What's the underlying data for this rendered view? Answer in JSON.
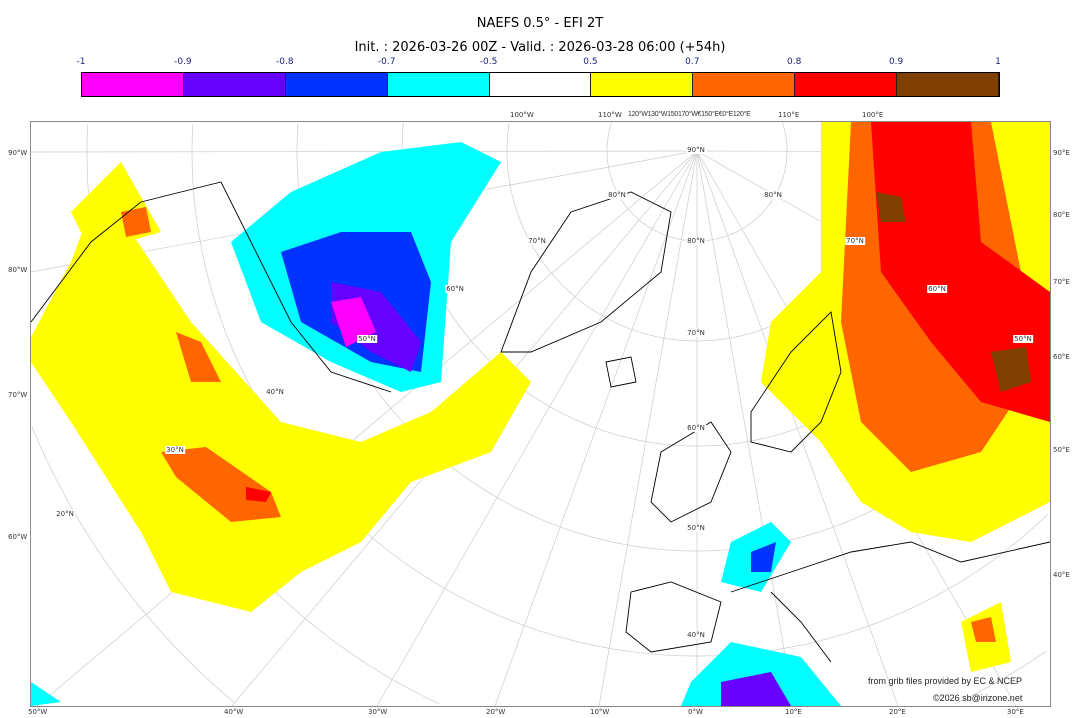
{
  "title": "NAEFS 0.5° - EFI 2T",
  "subtitle": "Init. : 2026-03-26 00Z - Valid. : 2026-03-28 06:00 (+54h)",
  "colorbar": {
    "ticks": [
      "-1",
      "-0.9",
      "-0.8",
      "-0.7",
      "-0.5",
      "0.5",
      "0.7",
      "0.8",
      "0.9",
      "1"
    ],
    "colors": [
      "#ff00ff",
      "#6600ff",
      "#0033ff",
      "#00ffff",
      "#ffffff",
      "#ffff00",
      "#ff6600",
      "#ff0000",
      "#7f3f00"
    ]
  },
  "axes": {
    "left": [
      {
        "t": "90°W"
      },
      {
        "t": "80°W"
      },
      {
        "t": "70°W"
      },
      {
        "t": "60°W"
      }
    ],
    "right": [
      {
        "t": "90°E"
      },
      {
        "t": "80°E"
      },
      {
        "t": "70°E"
      },
      {
        "t": "60°E"
      },
      {
        "t": "50°E"
      },
      {
        "t": "40°E"
      }
    ],
    "bottom": [
      {
        "t": "50°W"
      },
      {
        "t": "40°W"
      },
      {
        "t": "30°W"
      },
      {
        "t": "20°W"
      },
      {
        "t": "10°W"
      },
      {
        "t": "0°W"
      },
      {
        "t": "10°E"
      },
      {
        "t": "20°E"
      },
      {
        "t": "30°E"
      }
    ],
    "top": [
      {
        "t": "100°W"
      },
      {
        "t": "110°W"
      },
      {
        "t": "120°W130°W150170°W€150°E€0°E120°E"
      },
      {
        "t": "110°E"
      },
      {
        "t": "100°E"
      }
    ]
  },
  "lat_labels": [
    "90°N",
    "80°N",
    "80°N",
    "80°N",
    "70°N",
    "70°N",
    "70°N",
    "60°N",
    "60°N",
    "60°N",
    "50°N",
    "50°N",
    "50°N",
    "40°N",
    "40°N",
    "30°N",
    "20°N"
  ],
  "credits": {
    "source": "from grib files provided by EC & NCEP",
    "copyright": "©2026 sb@irizone.net"
  }
}
